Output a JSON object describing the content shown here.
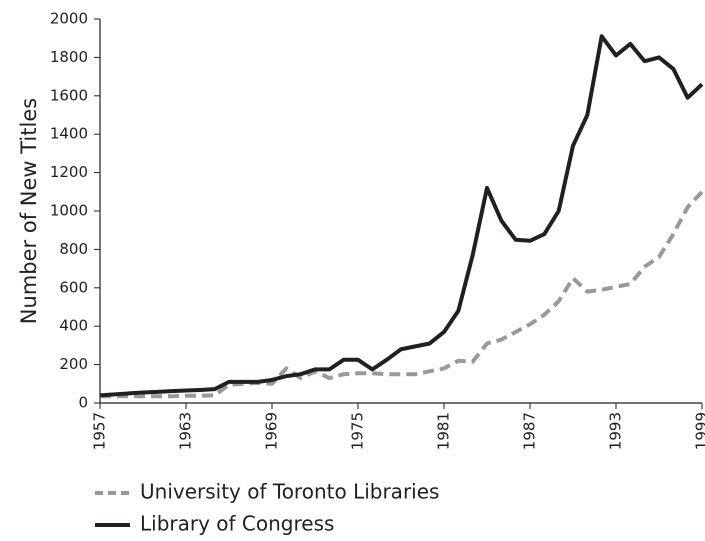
{
  "chart_data": {
    "type": "line",
    "y_label": "Number of New Titles",
    "x": [
      1957,
      1958,
      1959,
      1960,
      1961,
      1962,
      1963,
      1964,
      1965,
      1966,
      1967,
      1968,
      1969,
      1970,
      1971,
      1972,
      1973,
      1974,
      1975,
      1976,
      1977,
      1978,
      1979,
      1980,
      1981,
      1982,
      1983,
      1984,
      1985,
      1986,
      1987,
      1988,
      1989,
      1990,
      1991,
      1992,
      1993,
      1994,
      1995,
      1996,
      1997,
      1998,
      1999
    ],
    "series": [
      {
        "name": "University of Toronto Libraries",
        "color": "#999999",
        "dashed": true,
        "values": [
          35,
          35,
          35,
          35,
          35,
          35,
          38,
          38,
          40,
          95,
          100,
          105,
          100,
          180,
          130,
          165,
          130,
          150,
          155,
          155,
          150,
          150,
          150,
          165,
          180,
          220,
          215,
          310,
          330,
          370,
          410,
          460,
          530,
          650,
          580,
          590,
          605,
          620,
          710,
          760,
          880,
          1020,
          1100
        ]
      },
      {
        "name": "Library of Congress",
        "color": "#231f20",
        "dashed": false,
        "values": [
          40,
          45,
          50,
          55,
          58,
          62,
          65,
          68,
          72,
          110,
          110,
          110,
          120,
          140,
          150,
          175,
          175,
          225,
          225,
          175,
          225,
          280,
          295,
          310,
          370,
          480,
          770,
          1120,
          950,
          850,
          845,
          880,
          1000,
          1340,
          1500,
          1910,
          1810,
          1870,
          1780,
          1800,
          1740,
          1590,
          1660
        ]
      }
    ],
    "xlim": [
      1957,
      1999
    ],
    "xticks": [
      1957,
      1963,
      1969,
      1975,
      1981,
      1987,
      1993,
      1999
    ],
    "ylim": [
      0,
      2000
    ],
    "yticks": [
      0,
      200,
      400,
      600,
      800,
      1000,
      1200,
      1400,
      1600,
      1800,
      2000
    ],
    "grid": false,
    "legend": "bottom"
  }
}
